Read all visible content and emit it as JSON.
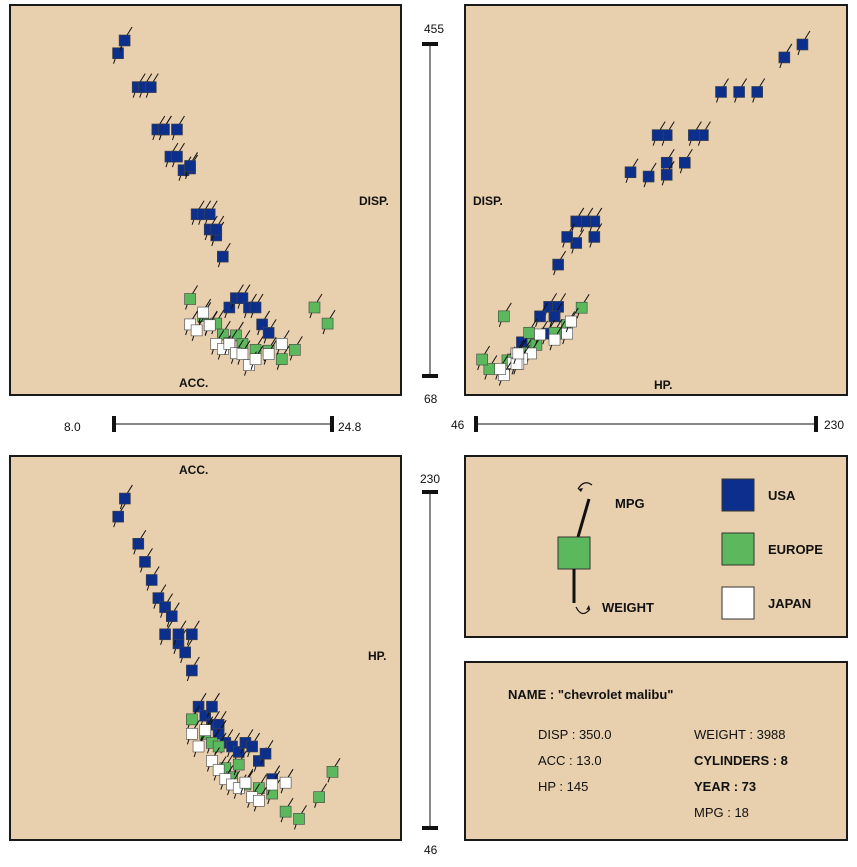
{
  "scales": {
    "acc_min": "8.0",
    "acc_max": "24.8",
    "disp_max": "455",
    "disp_min": "68",
    "hp_min_h": "46",
    "hp_max_h": "230",
    "hp_max_v": "230",
    "hp_min_v": "46"
  },
  "panels": {
    "acc_disp": {
      "xlabel": "ACC.",
      "ylabel": "DISP."
    },
    "hp_disp": {
      "xlabel": "HP.",
      "ylabel": "DISP."
    },
    "acc_hp": {
      "xlabel": "ACC.",
      "ylabel": "HP."
    }
  },
  "legend": {
    "glyph_up": "MPG",
    "glyph_down": "WEIGHT",
    "items": [
      {
        "label": "USA",
        "color": "#0d2f8c"
      },
      {
        "label": "EUROPE",
        "color": "#5cb85c"
      },
      {
        "label": "JAPAN",
        "color": "#ffffff"
      }
    ]
  },
  "info": {
    "name": "NAME : \"chevrolet malibu\"",
    "disp": "DISP : 350.0",
    "acc": "ACC : 13.0",
    "hp": "HP : 145",
    "weight": "WEIGHT : 3988",
    "cylinders": "CYLINDERS : 8",
    "year": "YEAR : 73",
    "mpg": "MPG  : 18"
  },
  "chart_data": {
    "type": "scatter",
    "variables": [
      "ACC.",
      "DISP.",
      "HP."
    ],
    "ranges": {
      "ACC.": [
        8.0,
        24.8
      ],
      "DISP.": [
        68,
        455
      ],
      "HP.": [
        46,
        230
      ]
    },
    "series": [
      {
        "name": "USA",
        "color": "#0d2f8c",
        "points": [
          {
            "acc": 8.5,
            "hp": 215,
            "disp": 440
          },
          {
            "acc": 9.0,
            "hp": 225,
            "disp": 455
          },
          {
            "acc": 10.0,
            "hp": 200,
            "disp": 400
          },
          {
            "acc": 10.5,
            "hp": 190,
            "disp": 400
          },
          {
            "acc": 11.0,
            "hp": 180,
            "disp": 400
          },
          {
            "acc": 11.5,
            "hp": 170,
            "disp": 350
          },
          {
            "acc": 12.0,
            "hp": 165,
            "disp": 350
          },
          {
            "acc": 12.0,
            "hp": 150,
            "disp": 350
          },
          {
            "acc": 12.5,
            "hp": 160,
            "disp": 318
          },
          {
            "acc": 13.0,
            "hp": 145,
            "disp": 350
          },
          {
            "acc": 13.0,
            "hp": 150,
            "disp": 318
          },
          {
            "acc": 13.5,
            "hp": 140,
            "disp": 302
          },
          {
            "acc": 14.0,
            "hp": 150,
            "disp": 304
          },
          {
            "acc": 14.0,
            "hp": 130,
            "disp": 307
          },
          {
            "acc": 14.5,
            "hp": 110,
            "disp": 250
          },
          {
            "acc": 15.0,
            "hp": 105,
            "disp": 250
          },
          {
            "acc": 15.5,
            "hp": 100,
            "disp": 250
          },
          {
            "acc": 15.5,
            "hp": 110,
            "disp": 232
          },
          {
            "acc": 16.0,
            "hp": 100,
            "disp": 225
          },
          {
            "acc": 16.0,
            "hp": 95,
            "disp": 232
          },
          {
            "acc": 16.5,
            "hp": 90,
            "disp": 200
          },
          {
            "acc": 17.0,
            "hp": 88,
            "disp": 140
          },
          {
            "acc": 17.5,
            "hp": 85,
            "disp": 151
          },
          {
            "acc": 18.0,
            "hp": 90,
            "disp": 151
          },
          {
            "acc": 18.5,
            "hp": 88,
            "disp": 140
          },
          {
            "acc": 19.0,
            "hp": 80,
            "disp": 140
          },
          {
            "acc": 19.5,
            "hp": 84,
            "disp": 120
          },
          {
            "acc": 20.0,
            "hp": 70,
            "disp": 110
          }
        ]
      },
      {
        "name": "EUROPE",
        "color": "#5cb85c",
        "points": [
          {
            "acc": 14.0,
            "hp": 103,
            "disp": 150
          },
          {
            "acc": 15.0,
            "hp": 95,
            "disp": 130
          },
          {
            "acc": 15.5,
            "hp": 90,
            "disp": 120
          },
          {
            "acc": 16.0,
            "hp": 88,
            "disp": 121
          },
          {
            "acc": 16.5,
            "hp": 76,
            "disp": 108
          },
          {
            "acc": 17.0,
            "hp": 71,
            "disp": 98
          },
          {
            "acc": 17.5,
            "hp": 78,
            "disp": 107
          },
          {
            "acc": 18.0,
            "hp": 67,
            "disp": 97
          },
          {
            "acc": 19.0,
            "hp": 65,
            "disp": 90
          },
          {
            "acc": 20.0,
            "hp": 62,
            "disp": 89
          },
          {
            "acc": 21.0,
            "hp": 52,
            "disp": 79
          },
          {
            "acc": 22.0,
            "hp": 48,
            "disp": 90
          },
          {
            "acc": 23.5,
            "hp": 60,
            "disp": 140
          },
          {
            "acc": 24.5,
            "hp": 74,
            "disp": 121
          }
        ]
      },
      {
        "name": "JAPAN",
        "color": "#ffffff",
        "points": [
          {
            "acc": 14.0,
            "hp": 95,
            "disp": 120
          },
          {
            "acc": 14.5,
            "hp": 88,
            "disp": 113
          },
          {
            "acc": 15.0,
            "hp": 97,
            "disp": 134
          },
          {
            "acc": 15.5,
            "hp": 80,
            "disp": 119
          },
          {
            "acc": 16.0,
            "hp": 75,
            "disp": 97
          },
          {
            "acc": 16.5,
            "hp": 70,
            "disp": 91
          },
          {
            "acc": 17.0,
            "hp": 67,
            "disp": 97
          },
          {
            "acc": 17.5,
            "hp": 65,
            "disp": 86
          },
          {
            "acc": 18.0,
            "hp": 68,
            "disp": 85
          },
          {
            "acc": 18.5,
            "hp": 60,
            "disp": 72
          },
          {
            "acc": 19.0,
            "hp": 58,
            "disp": 79
          },
          {
            "acc": 20.0,
            "hp": 67,
            "disp": 85
          },
          {
            "acc": 21.0,
            "hp": 68,
            "disp": 97
          }
        ]
      }
    ]
  }
}
